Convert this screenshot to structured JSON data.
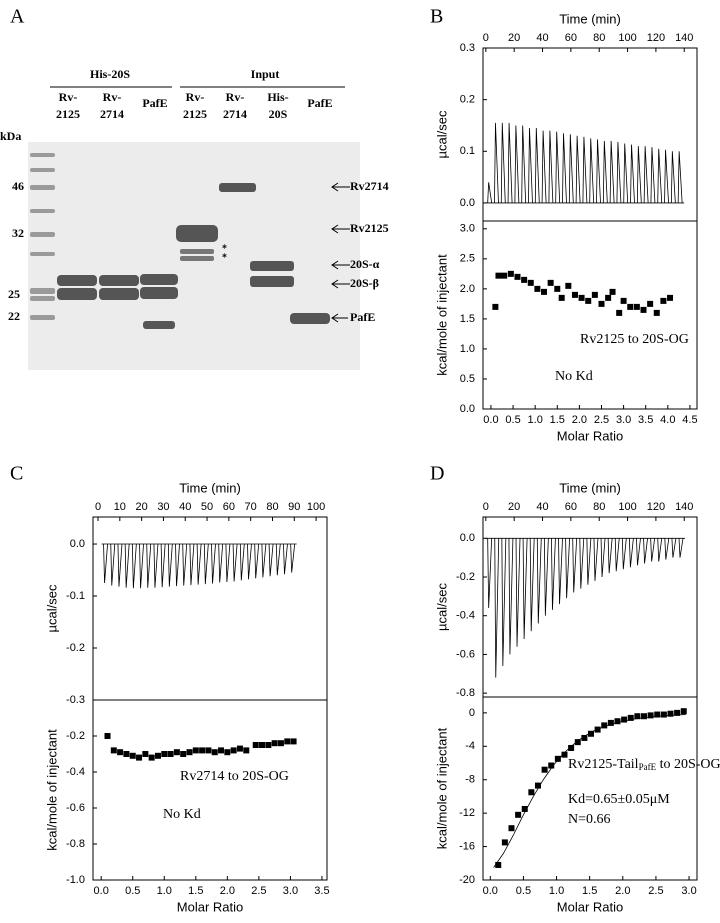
{
  "gel": {
    "label": "A",
    "groups": [
      "His-20S",
      "Input"
    ],
    "lanes": [
      [
        "Rv-",
        "2125"
      ],
      [
        "Rv-",
        "2714"
      ],
      [
        "PafE"
      ],
      [
        "Rv-",
        "2125"
      ],
      [
        "Rv-",
        "2714"
      ],
      [
        "His-",
        "20S"
      ],
      [
        "PafE"
      ]
    ],
    "kda_label": "kDa",
    "markers": [
      "46",
      "32",
      "25",
      "22"
    ],
    "asterisks": [
      "*",
      "*"
    ],
    "bands": [
      "Rv2714",
      "Rv2125",
      "20S-α",
      "20S-β",
      "PafE"
    ]
  },
  "chart_data": [
    {
      "type": "injections",
      "label": "B",
      "xlabel": "Time (min)",
      "ylabel": "µcal/sec",
      "color": "#000000",
      "x": [
        2,
        6.8,
        11.6,
        16.4,
        21.2,
        26,
        30.8,
        35.6,
        40.4,
        45.2,
        50,
        54.8,
        59.6,
        64.4,
        69.2,
        74,
        78.8,
        83.6,
        88.4,
        93.2,
        98,
        102.8,
        107.6,
        112.4,
        117.2,
        122,
        126.8,
        131.6,
        136.4
      ],
      "values": [
        0.04,
        0.155,
        0.155,
        0.155,
        0.15,
        0.15,
        0.145,
        0.145,
        0.14,
        0.14,
        0.138,
        0.135,
        0.133,
        0.13,
        0.128,
        0.125,
        0.123,
        0.12,
        0.12,
        0.118,
        0.115,
        0.113,
        0.11,
        0.11,
        0.108,
        0.105,
        0.103,
        0.1,
        0.1
      ],
      "xlim": [
        -2,
        149
      ],
      "ylim": [
        -0.035,
        0.3
      ],
      "xticks": [
        0,
        20,
        40,
        60,
        80,
        100,
        120,
        140
      ],
      "yticks": [
        {
          "value": 0,
          "label": "0.0"
        },
        0.1,
        0.2,
        0.3
      ]
    },
    {
      "type": "scatter",
      "xlabel": "Molar Ratio",
      "ylabel": "kcal/mole of injectant",
      "color": "#000000",
      "x": [
        0.1,
        0.17,
        0.3,
        0.45,
        0.6,
        0.75,
        0.9,
        1.05,
        1.2,
        1.35,
        1.5,
        1.6,
        1.75,
        1.9,
        2.05,
        2.2,
        2.35,
        2.5,
        2.65,
        2.75,
        2.9,
        3.0,
        3.15,
        3.3,
        3.45,
        3.6,
        3.75,
        3.9,
        4.05
      ],
      "values": [
        1.7,
        2.22,
        2.22,
        2.25,
        2.2,
        2.15,
        2.1,
        2.0,
        1.95,
        2.1,
        2.0,
        1.85,
        2.05,
        1.9,
        1.85,
        1.8,
        1.9,
        1.75,
        1.85,
        1.95,
        1.6,
        1.8,
        1.7,
        1.7,
        1.65,
        1.75,
        1.6,
        1.8,
        1.85
      ],
      "xlim": [
        -0.18,
        4.66
      ],
      "ylim": [
        0,
        3.13
      ],
      "xticks": [
        {
          "value": 0,
          "label": "0.0"
        },
        0.5,
        {
          "value": 1,
          "label": "1.0"
        },
        1.5,
        {
          "value": 2,
          "label": "2.0"
        },
        2.5,
        {
          "value": 3,
          "label": "3.0"
        },
        3.5,
        {
          "value": 4,
          "label": "4.0"
        },
        4.5
      ],
      "yticks": [
        {
          "value": 0,
          "label": "0.0"
        },
        0.5,
        {
          "value": 1,
          "label": "1.0"
        },
        1.5,
        {
          "value": 2,
          "label": "2.0"
        },
        2.5,
        {
          "value": 3,
          "label": "3.0"
        }
      ],
      "annotations": [
        "Rv2125 to 20S-OG",
        "No Kd"
      ]
    },
    {
      "type": "injections",
      "label": "C",
      "xlabel": "Time (min)",
      "ylabel": "µcal/sec",
      "color": "#000000",
      "x": [
        3,
        6.3,
        9.6,
        12.9,
        16.2,
        19.5,
        22.8,
        26.1,
        29.4,
        32.7,
        36,
        39.3,
        42.6,
        45.9,
        49.2,
        52.5,
        55.8,
        59.1,
        62.4,
        65.7,
        69,
        72.3,
        75.6,
        78.9,
        82.2,
        85.5,
        88.8
      ],
      "values": [
        -0.075,
        -0.08,
        -0.082,
        -0.084,
        -0.085,
        -0.085,
        -0.084,
        -0.084,
        -0.083,
        -0.082,
        -0.081,
        -0.08,
        -0.079,
        -0.078,
        -0.077,
        -0.076,
        -0.074,
        -0.073,
        -0.072,
        -0.07,
        -0.068,
        -0.066,
        -0.064,
        -0.062,
        -0.06,
        -0.058,
        -0.055
      ],
      "xlim": [
        -2.3,
        105
      ],
      "ylim": [
        -0.3,
        0.052
      ],
      "xticks": [
        0,
        10,
        20,
        30,
        40,
        50,
        60,
        70,
        80,
        90,
        100
      ],
      "yticks": [
        {
          "value": 0,
          "label": "0.0"
        },
        -0.1,
        -0.2,
        -0.3
      ]
    },
    {
      "type": "scatter",
      "xlabel": "Molar Ratio",
      "ylabel": "kcal/mole of injectant",
      "color": "#000000",
      "x": [
        0.1,
        0.2,
        0.3,
        0.4,
        0.5,
        0.6,
        0.7,
        0.8,
        0.9,
        1.0,
        1.1,
        1.2,
        1.3,
        1.4,
        1.5,
        1.6,
        1.7,
        1.8,
        1.9,
        2.0,
        2.1,
        2.2,
        2.3,
        2.45,
        2.55,
        2.65,
        2.75,
        2.85,
        2.95,
        3.05
      ],
      "values": [
        -0.2,
        -0.28,
        -0.29,
        -0.3,
        -0.31,
        -0.32,
        -0.3,
        -0.32,
        -0.31,
        -0.3,
        -0.3,
        -0.29,
        -0.3,
        -0.29,
        -0.28,
        -0.28,
        -0.28,
        -0.29,
        -0.28,
        -0.29,
        -0.28,
        -0.27,
        -0.28,
        -0.25,
        -0.25,
        -0.25,
        -0.24,
        -0.24,
        -0.23,
        -0.23
      ],
      "xlim": [
        -0.13,
        3.58
      ],
      "ylim": [
        -1.0,
        0.0
      ],
      "xticks": [
        {
          "value": 0,
          "label": "0.0"
        },
        0.5,
        {
          "value": 1,
          "label": "1.0"
        },
        1.5,
        {
          "value": 2,
          "label": "2.0"
        },
        2.5,
        {
          "value": 3,
          "label": "3.0"
        },
        3.5
      ],
      "yticks": [
        -0.2,
        -0.4,
        -0.6,
        -0.8,
        {
          "value": -1,
          "label": "-1.0"
        }
      ],
      "annotations": [
        "Rv2714 to 20S-OG",
        "No Kd"
      ]
    },
    {
      "type": "injections",
      "label": "D",
      "xlabel": "Time (min)",
      "ylabel": "µcal/sec",
      "color": "#000000",
      "x": [
        2,
        7,
        12,
        17,
        22,
        27,
        32,
        37,
        42,
        47,
        52,
        57,
        62,
        67,
        72,
        77,
        82,
        87,
        92,
        97,
        102,
        107,
        112,
        117,
        122,
        127,
        132,
        137
      ],
      "values": [
        -0.36,
        -0.72,
        -0.66,
        -0.6,
        -0.56,
        -0.52,
        -0.48,
        -0.44,
        -0.4,
        -0.37,
        -0.34,
        -0.31,
        -0.28,
        -0.26,
        -0.24,
        -0.22,
        -0.2,
        -0.18,
        -0.17,
        -0.16,
        -0.15,
        -0.14,
        -0.13,
        -0.12,
        -0.12,
        -0.11,
        -0.1,
        -0.1
      ],
      "xlim": [
        -2,
        149
      ],
      "ylim": [
        -0.82,
        0.11
      ],
      "xticks": [
        0,
        20,
        40,
        60,
        80,
        100,
        120,
        140
      ],
      "yticks": [
        {
          "value": 0,
          "label": "0.0"
        },
        -0.2,
        -0.4,
        -0.6,
        -0.8
      ]
    },
    {
      "type": "scatter",
      "xlabel": "Molar Ratio",
      "ylabel": "kcal/mole of injectant",
      "color": "#000000",
      "x": [
        0.12,
        0.22,
        0.32,
        0.42,
        0.52,
        0.62,
        0.72,
        0.82,
        0.92,
        1.02,
        1.12,
        1.22,
        1.32,
        1.42,
        1.52,
        1.62,
        1.72,
        1.82,
        1.92,
        2.02,
        2.12,
        2.22,
        2.32,
        2.42,
        2.52,
        2.62,
        2.72,
        2.82,
        2.92
      ],
      "values": [
        -18.2,
        -15.5,
        -13.8,
        -12.2,
        -11.5,
        -9.5,
        -8.7,
        -6.8,
        -6.3,
        -5.5,
        -5.0,
        -4.2,
        -3.5,
        -3.0,
        -2.5,
        -2.0,
        -1.5,
        -1.2,
        -1.0,
        -0.8,
        -0.6,
        -0.4,
        -0.4,
        -0.3,
        -0.2,
        -0.2,
        -0.1,
        0.0,
        0.2
      ],
      "fit": {
        "x": [
          0.05,
          0.2,
          0.35,
          0.5,
          0.65,
          0.8,
          0.95,
          1.1,
          1.25,
          1.4,
          1.55,
          1.7,
          1.85,
          2.0,
          2.2,
          2.4,
          2.6,
          2.8,
          2.95
        ],
        "values": [
          -18.5,
          -16.8,
          -14.6,
          -12.2,
          -10.0,
          -8.0,
          -6.3,
          -4.9,
          -3.8,
          -2.9,
          -2.2,
          -1.7,
          -1.3,
          -1.0,
          -0.7,
          -0.5,
          -0.35,
          -0.25,
          -0.2
        ]
      },
      "xlim": [
        -0.11,
        3.12
      ],
      "ylim": [
        -20,
        1.9
      ],
      "xticks": [
        {
          "value": 0,
          "label": "0.0"
        },
        0.5,
        {
          "value": 1,
          "label": "1.0"
        },
        1.5,
        {
          "value": 2,
          "label": "2.0"
        },
        2.5,
        {
          "value": 3,
          "label": "3.0"
        }
      ],
      "yticks": [
        0,
        -4,
        -8,
        -12,
        -16,
        -20
      ],
      "annotations": [
        [
          "Rv2125-Tail",
          "PafE",
          " to 20S-OG"
        ],
        "Kd=0.65±0.05μM",
        "N=0.66"
      ]
    }
  ]
}
